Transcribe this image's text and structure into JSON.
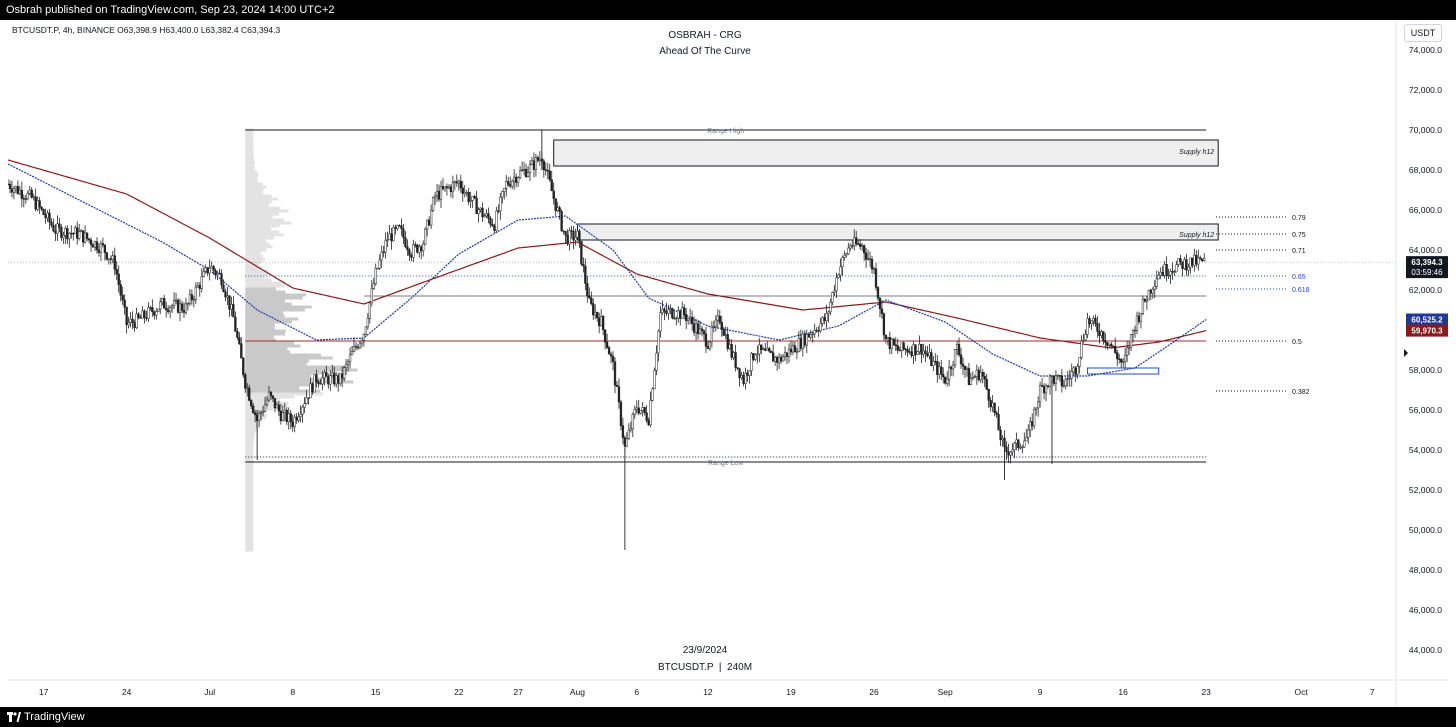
{
  "header": {
    "published_text": "Osbrah published on TradingView.com, Sep 23, 2024 14:00 UTC+2"
  },
  "footer": {
    "brand": "TradingView"
  },
  "chart_data": {
    "type": "candlestick",
    "symbol_line": "BTCUSDT.P, 4h, BINANCE  O63,398.9  H63,400.0  L63,382.4  C63,394.3",
    "title": "OSBRAH - CRG",
    "subtitle": "Ahead Of The Curve",
    "watermark_date": "23/9/2024",
    "watermark_symbol": "BTCUSDT.P  |  240M",
    "currency_button": "USDT",
    "ylim": [
      42500,
      75500
    ],
    "y_ticks": [
      44000,
      46000,
      48000,
      50000,
      52000,
      54000,
      56000,
      58000,
      60000,
      62000,
      64000,
      66000,
      68000,
      70000,
      72000,
      74000
    ],
    "y_tick_labels": [
      "44,000.0",
      "46,000.0",
      "48,000.0",
      "50,000.0",
      "52,000.0",
      "54,000.0",
      "56,000.0",
      "58,000.0",
      "60,000.0",
      "62,000.0",
      "64,000.0",
      "66,000.0",
      "68,000.0",
      "70,000.0",
      "72,000.0",
      "74,000.0"
    ],
    "xlim": [
      "2024-06-14",
      "2024-10-09"
    ],
    "x_ticks": [
      {
        "date": "2024-06-17",
        "label": "17"
      },
      {
        "date": "2024-06-24",
        "label": "24"
      },
      {
        "date": "2024-07-01",
        "label": "Jul"
      },
      {
        "date": "2024-07-08",
        "label": "8"
      },
      {
        "date": "2024-07-15",
        "label": "15"
      },
      {
        "date": "2024-07-22",
        "label": "22"
      },
      {
        "date": "2024-07-27",
        "label": "27"
      },
      {
        "date": "2024-08-01",
        "label": "Aug"
      },
      {
        "date": "2024-08-06",
        "label": "6"
      },
      {
        "date": "2024-08-12",
        "label": "12"
      },
      {
        "date": "2024-08-19",
        "label": "19"
      },
      {
        "date": "2024-08-26",
        "label": "26"
      },
      {
        "date": "2024-09-01",
        "label": "Sep"
      },
      {
        "date": "2024-09-09",
        "label": "9"
      },
      {
        "date": "2024-09-16",
        "label": "16"
      },
      {
        "date": "2024-09-23",
        "label": "23"
      },
      {
        "date": "2024-10-01",
        "label": "Oct"
      },
      {
        "date": "2024-10-07",
        "label": "7"
      }
    ],
    "price_path": [
      [
        "2024-06-14",
        67300
      ],
      [
        "2024-06-16",
        66600
      ],
      [
        "2024-06-18",
        65000
      ],
      [
        "2024-06-20",
        64800
      ],
      [
        "2024-06-22",
        64100
      ],
      [
        "2024-06-23",
        63300
      ],
      [
        "2024-06-24",
        60300
      ],
      [
        "2024-06-25",
        60500
      ],
      [
        "2024-06-27",
        61300
      ],
      [
        "2024-06-29",
        61100
      ],
      [
        "2024-07-01",
        63200
      ],
      [
        "2024-07-02",
        62600
      ],
      [
        "2024-07-03",
        60600
      ],
      [
        "2024-07-04",
        57400
      ],
      [
        "2024-07-05",
        55500
      ],
      [
        "2024-07-06",
        56700
      ],
      [
        "2024-07-07",
        55800
      ],
      [
        "2024-07-08",
        55400
      ],
      [
        "2024-07-10",
        57600
      ],
      [
        "2024-07-12",
        57500
      ],
      [
        "2024-07-13",
        58800
      ],
      [
        "2024-07-14",
        59900
      ],
      [
        "2024-07-15",
        62800
      ],
      [
        "2024-07-16",
        64600
      ],
      [
        "2024-07-17",
        65000
      ],
      [
        "2024-07-18",
        63900
      ],
      [
        "2024-07-19",
        64400
      ],
      [
        "2024-07-20",
        66700
      ],
      [
        "2024-07-22",
        67400
      ],
      [
        "2024-07-23",
        66500
      ],
      [
        "2024-07-24",
        65800
      ],
      [
        "2024-07-25",
        65300
      ],
      [
        "2024-07-26",
        67300
      ],
      [
        "2024-07-27",
        67800
      ],
      [
        "2024-07-28",
        68100
      ],
      [
        "2024-07-29",
        68700
      ],
      [
        "2024-07-30",
        66600
      ],
      [
        "2024-07-31",
        64600
      ],
      [
        "2024-08-01",
        64700
      ],
      [
        "2024-08-02",
        61300
      ],
      [
        "2024-08-03",
        60400
      ],
      [
        "2024-08-04",
        58200
      ],
      [
        "2024-08-05",
        54100
      ],
      [
        "2024-08-06",
        56200
      ],
      [
        "2024-08-07",
        55600
      ],
      [
        "2024-08-08",
        60800
      ],
      [
        "2024-08-09",
        60900
      ],
      [
        "2024-08-10",
        60800
      ],
      [
        "2024-08-12",
        59400
      ],
      [
        "2024-08-13",
        60600
      ],
      [
        "2024-08-14",
        58800
      ],
      [
        "2024-08-15",
        57500
      ],
      [
        "2024-08-16",
        59000
      ],
      [
        "2024-08-18",
        58500
      ],
      [
        "2024-08-20",
        59500
      ],
      [
        "2024-08-22",
        60600
      ],
      [
        "2024-08-23",
        63000
      ],
      [
        "2024-08-24",
        64300
      ],
      [
        "2024-08-25",
        64200
      ],
      [
        "2024-08-26",
        63000
      ],
      [
        "2024-08-27",
        59500
      ],
      [
        "2024-08-28",
        59000
      ],
      [
        "2024-08-30",
        59100
      ],
      [
        "2024-09-01",
        57500
      ],
      [
        "2024-09-02",
        59100
      ],
      [
        "2024-09-03",
        57500
      ],
      [
        "2024-09-04",
        57900
      ],
      [
        "2024-09-05",
        56200
      ],
      [
        "2024-09-06",
        53900
      ],
      [
        "2024-09-07",
        54200
      ],
      [
        "2024-09-08",
        54700
      ],
      [
        "2024-09-09",
        57000
      ],
      [
        "2024-09-10",
        57600
      ],
      [
        "2024-09-11",
        57300
      ],
      [
        "2024-09-12",
        58100
      ],
      [
        "2024-09-13",
        60500
      ],
      [
        "2024-09-14",
        60000
      ],
      [
        "2024-09-15",
        59200
      ],
      [
        "2024-09-16",
        58200
      ],
      [
        "2024-09-17",
        60300
      ],
      [
        "2024-09-18",
        61700
      ],
      [
        "2024-09-19",
        62900
      ],
      [
        "2024-09-20",
        63100
      ],
      [
        "2024-09-21",
        63300
      ],
      [
        "2024-09-22",
        63400
      ],
      [
        "2024-09-23",
        63394
      ]
    ],
    "ma_fast_blue": [
      [
        "2024-06-14",
        68300
      ],
      [
        "2024-06-20",
        66500
      ],
      [
        "2024-06-27",
        64400
      ],
      [
        "2024-07-01",
        63000
      ],
      [
        "2024-07-05",
        61000
      ],
      [
        "2024-07-10",
        59500
      ],
      [
        "2024-07-14",
        59600
      ],
      [
        "2024-07-18",
        61600
      ],
      [
        "2024-07-22",
        63800
      ],
      [
        "2024-07-27",
        65500
      ],
      [
        "2024-07-31",
        65700
      ],
      [
        "2024-08-04",
        64000
      ],
      [
        "2024-08-07",
        61600
      ],
      [
        "2024-08-12",
        60200
      ],
      [
        "2024-08-18",
        59500
      ],
      [
        "2024-08-23",
        60200
      ],
      [
        "2024-08-27",
        61500
      ],
      [
        "2024-09-01",
        60400
      ],
      [
        "2024-09-05",
        58800
      ],
      [
        "2024-09-09",
        57700
      ],
      [
        "2024-09-13",
        57700
      ],
      [
        "2024-09-17",
        58100
      ],
      [
        "2024-09-20",
        59300
      ],
      [
        "2024-09-23",
        60525
      ]
    ],
    "ma_slow_red": [
      [
        "2024-06-14",
        68500
      ],
      [
        "2024-06-24",
        66800
      ],
      [
        "2024-07-01",
        64600
      ],
      [
        "2024-07-08",
        62100
      ],
      [
        "2024-07-14",
        61300
      ],
      [
        "2024-07-20",
        62600
      ],
      [
        "2024-07-27",
        64100
      ],
      [
        "2024-08-01",
        64400
      ],
      [
        "2024-08-06",
        62800
      ],
      [
        "2024-08-12",
        61800
      ],
      [
        "2024-08-20",
        61000
      ],
      [
        "2024-08-27",
        61400
      ],
      [
        "2024-09-02",
        60600
      ],
      [
        "2024-09-09",
        59600
      ],
      [
        "2024-09-15",
        59100
      ],
      [
        "2024-09-19",
        59400
      ],
      [
        "2024-09-23",
        59970
      ]
    ],
    "levels": [
      {
        "name": "Range High",
        "price": 70000
      },
      {
        "name": "Range Low",
        "price": 53400
      },
      {
        "name": "Supply h12",
        "top": 69500,
        "bottom": 68200
      },
      {
        "name": "Supply h12",
        "top": 65300,
        "bottom": 64500
      }
    ],
    "fib_levels": [
      {
        "label": "0.79",
        "price": 65650
      },
      {
        "label": "0.75",
        "price": 64800
      },
      {
        "label": "0.71",
        "price": 64000
      },
      {
        "label": "0.65",
        "price": 62700
      },
      {
        "label": "0.618",
        "price": 62050
      },
      {
        "label": "0.5",
        "price": 59450
      },
      {
        "label": "0.382",
        "price": 56950
      }
    ],
    "price_tags": [
      {
        "value": "63,394.3",
        "sub": "03:59:46",
        "color": "#131722"
      },
      {
        "value": "60,525.2",
        "color": "#1f3a93"
      },
      {
        "value": "59,970.3",
        "color": "#8b1a1a"
      }
    ],
    "colors": {
      "ma_fast": "#1f3aa8",
      "ma_slow": "#8b1a1a",
      "candles": "#222222",
      "fib": "#1f4fbf",
      "profile": "#d5d5d5"
    }
  }
}
